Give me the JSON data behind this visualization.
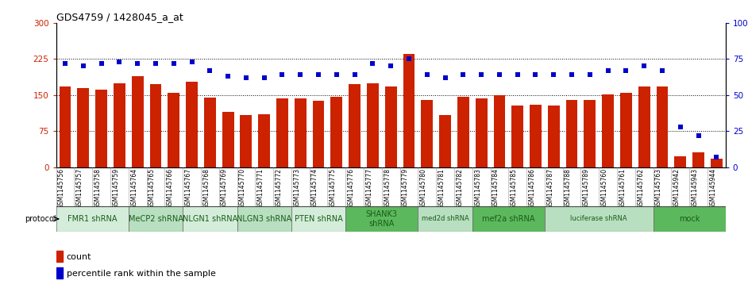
{
  "title": "GDS4759 / 1428045_a_at",
  "samples": [
    "GSM1145756",
    "GSM1145757",
    "GSM1145758",
    "GSM1145759",
    "GSM1145764",
    "GSM1145765",
    "GSM1145766",
    "GSM1145767",
    "GSM1145768",
    "GSM1145769",
    "GSM1145770",
    "GSM1145771",
    "GSM1145772",
    "GSM1145773",
    "GSM1145774",
    "GSM1145775",
    "GSM1145776",
    "GSM1145777",
    "GSM1145778",
    "GSM1145779",
    "GSM1145780",
    "GSM1145781",
    "GSM1145782",
    "GSM1145783",
    "GSM1145784",
    "GSM1145785",
    "GSM1145786",
    "GSM1145787",
    "GSM1145788",
    "GSM1145789",
    "GSM1145760",
    "GSM1145761",
    "GSM1145762",
    "GSM1145763",
    "GSM1145942",
    "GSM1145943",
    "GSM1145944"
  ],
  "counts": [
    168,
    165,
    162,
    175,
    190,
    172,
    155,
    178,
    145,
    115,
    108,
    110,
    143,
    143,
    138,
    147,
    172,
    175,
    168,
    235,
    140,
    108,
    146,
    143,
    150,
    128,
    130,
    128,
    140,
    140,
    152,
    155,
    168,
    168,
    22,
    30,
    18
  ],
  "percentiles": [
    72,
    70,
    72,
    73,
    72,
    72,
    72,
    73,
    67,
    63,
    62,
    62,
    64,
    64,
    64,
    64,
    64,
    72,
    70,
    75,
    64,
    62,
    64,
    64,
    64,
    64,
    64,
    64,
    64,
    64,
    67,
    67,
    70,
    67,
    28,
    22,
    7
  ],
  "protocols": [
    {
      "label": "FMR1 shRNA",
      "start": 0,
      "end": 4,
      "color": "#d4edda",
      "font_size": 7
    },
    {
      "label": "MeCP2 shRNA",
      "start": 4,
      "end": 7,
      "color": "#b8dfc0",
      "font_size": 7
    },
    {
      "label": "NLGN1 shRNA",
      "start": 7,
      "end": 10,
      "color": "#d4edda",
      "font_size": 7
    },
    {
      "label": "NLGN3 shRNA",
      "start": 10,
      "end": 13,
      "color": "#b8dfc0",
      "font_size": 7
    },
    {
      "label": "PTEN shRNA",
      "start": 13,
      "end": 16,
      "color": "#d4edda",
      "font_size": 7
    },
    {
      "label": "SHANK3\nshRNA",
      "start": 16,
      "end": 20,
      "color": "#5cb85c",
      "font_size": 7
    },
    {
      "label": "med2d shRNA",
      "start": 20,
      "end": 23,
      "color": "#b8dfc0",
      "font_size": 6
    },
    {
      "label": "mef2a shRNA",
      "start": 23,
      "end": 27,
      "color": "#5cb85c",
      "font_size": 7
    },
    {
      "label": "luciferase shRNA",
      "start": 27,
      "end": 33,
      "color": "#b8dfc0",
      "font_size": 6
    },
    {
      "label": "mock",
      "start": 33,
      "end": 37,
      "color": "#5cb85c",
      "font_size": 7
    }
  ],
  "ylim_left": [
    0,
    300
  ],
  "ylim_right": [
    0,
    100
  ],
  "yticks_left": [
    0,
    75,
    150,
    225,
    300
  ],
  "yticks_right": [
    0,
    25,
    50,
    75,
    100
  ],
  "bar_color": "#cc2200",
  "dot_color": "#0000cc",
  "tick_bg_color": "#c8c8c8"
}
